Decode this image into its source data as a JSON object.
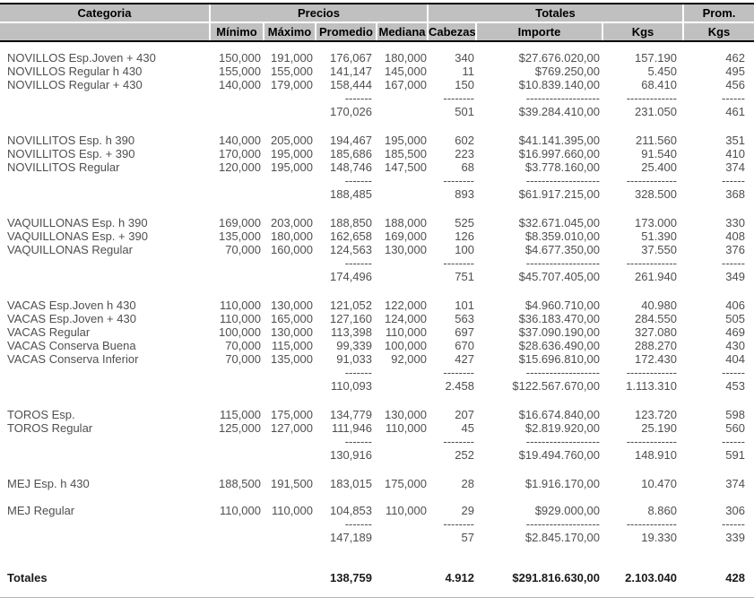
{
  "header": {
    "categoria": "Categoria",
    "precios": "Precios",
    "totales": "Totales",
    "prom": "Prom.",
    "sub": [
      "Mínimo",
      "Máximo",
      "Promedio",
      "Mediana",
      "Cabezas",
      "Importe",
      "Kgs",
      "Kgs"
    ]
  },
  "colors": {
    "header_bg": "#c0c0c0",
    "header_border": "#000000",
    "body_text": "#4f4f4f",
    "bottom_rule": "#b3b3b3"
  },
  "dashes": {
    "promedio": "-------",
    "cabezas": "--------",
    "importe": "-------------------",
    "kgs": "-------------",
    "prom_kgs": "------"
  },
  "groups": [
    {
      "rows": [
        {
          "categoria": "NOVILLOS Esp.Joven + 430",
          "minimo": "150,000",
          "maximo": "191,000",
          "promedio": "176,067",
          "mediana": "180,000",
          "cabezas": "340",
          "importe": "$27.676.020,00",
          "kgs": "157.190",
          "prom_kgs": "462"
        },
        {
          "categoria": "NOVILLOS Regular h 430",
          "minimo": "155,000",
          "maximo": "155,000",
          "promedio": "141,147",
          "mediana": "145,000",
          "cabezas": "11",
          "importe": "$769.250,00",
          "kgs": "5.450",
          "prom_kgs": "495"
        },
        {
          "categoria": "NOVILLOS Regular + 430",
          "minimo": "140,000",
          "maximo": "179,000",
          "promedio": "158,444",
          "mediana": "167,000",
          "cabezas": "150",
          "importe": "$10.839.140,00",
          "kgs": "68.410",
          "prom_kgs": "456"
        }
      ],
      "subtotal": {
        "promedio": "170,026",
        "cabezas": "501",
        "importe": "$39.284.410,00",
        "kgs": "231.050",
        "prom_kgs": "461"
      }
    },
    {
      "rows": [
        {
          "categoria": "NOVILLITOS Esp. h 390",
          "minimo": "140,000",
          "maximo": "205,000",
          "promedio": "194,467",
          "mediana": "195,000",
          "cabezas": "602",
          "importe": "$41.141.395,00",
          "kgs": "211.560",
          "prom_kgs": "351"
        },
        {
          "categoria": "NOVILLITOS Esp. + 390",
          "minimo": "170,000",
          "maximo": "195,000",
          "promedio": "185,686",
          "mediana": "185,500",
          "cabezas": "223",
          "importe": "$16.997.660,00",
          "kgs": "91.540",
          "prom_kgs": "410"
        },
        {
          "categoria": "NOVILLITOS Regular",
          "minimo": "120,000",
          "maximo": "195,000",
          "promedio": "148,746",
          "mediana": "147,500",
          "cabezas": "68",
          "importe": "$3.778.160,00",
          "kgs": "25.400",
          "prom_kgs": "374"
        }
      ],
      "subtotal": {
        "promedio": "188,485",
        "cabezas": "893",
        "importe": "$61.917.215,00",
        "kgs": "328.500",
        "prom_kgs": "368"
      }
    },
    {
      "rows": [
        {
          "categoria": "VAQUILLONAS Esp. h 390",
          "minimo": "169,000",
          "maximo": "203,000",
          "promedio": "188,850",
          "mediana": "188,000",
          "cabezas": "525",
          "importe": "$32.671.045,00",
          "kgs": "173.000",
          "prom_kgs": "330"
        },
        {
          "categoria": "VAQUILLONAS Esp. + 390",
          "minimo": "135,000",
          "maximo": "180,000",
          "promedio": "162,658",
          "mediana": "169,000",
          "cabezas": "126",
          "importe": "$8.359.010,00",
          "kgs": "51.390",
          "prom_kgs": "408"
        },
        {
          "categoria": "VAQUILLONAS Regular",
          "minimo": "70,000",
          "maximo": "160,000",
          "promedio": "124,563",
          "mediana": "130,000",
          "cabezas": "100",
          "importe": "$4.677.350,00",
          "kgs": "37.550",
          "prom_kgs": "376"
        }
      ],
      "subtotal": {
        "promedio": "174,496",
        "cabezas": "751",
        "importe": "$45.707.405,00",
        "kgs": "261.940",
        "prom_kgs": "349"
      }
    },
    {
      "rows": [
        {
          "categoria": "VACAS Esp.Joven h 430",
          "minimo": "110,000",
          "maximo": "130,000",
          "promedio": "121,052",
          "mediana": "122,000",
          "cabezas": "101",
          "importe": "$4.960.710,00",
          "kgs": "40.980",
          "prom_kgs": "406"
        },
        {
          "categoria": "VACAS Esp.Joven + 430",
          "minimo": "110,000",
          "maximo": "165,000",
          "promedio": "127,160",
          "mediana": "124,000",
          "cabezas": "563",
          "importe": "$36.183.470,00",
          "kgs": "284.550",
          "prom_kgs": "505"
        },
        {
          "categoria": "VACAS Regular",
          "minimo": "100,000",
          "maximo": "130,000",
          "promedio": "113,398",
          "mediana": "110,000",
          "cabezas": "697",
          "importe": "$37.090.190,00",
          "kgs": "327.080",
          "prom_kgs": "469"
        },
        {
          "categoria": "VACAS Conserva Buena",
          "minimo": "70,000",
          "maximo": "115,000",
          "promedio": "99,339",
          "mediana": "100,000",
          "cabezas": "670",
          "importe": "$28.636.490,00",
          "kgs": "288.270",
          "prom_kgs": "430"
        },
        {
          "categoria": "VACAS Conserva Inferior",
          "minimo": "70,000",
          "maximo": "135,000",
          "promedio": "91,033",
          "mediana": "92,000",
          "cabezas": "427",
          "importe": "$15.696.810,00",
          "kgs": "172.430",
          "prom_kgs": "404"
        }
      ],
      "subtotal": {
        "promedio": "110,093",
        "cabezas": "2.458",
        "importe": "$122.567.670,00",
        "kgs": "1.113.310",
        "prom_kgs": "453"
      }
    },
    {
      "rows": [
        {
          "categoria": "TOROS Esp.",
          "minimo": "115,000",
          "maximo": "175,000",
          "promedio": "134,779",
          "mediana": "130,000",
          "cabezas": "207",
          "importe": "$16.674.840,00",
          "kgs": "123.720",
          "prom_kgs": "598"
        },
        {
          "categoria": "TOROS Regular",
          "minimo": "125,000",
          "maximo": "127,000",
          "promedio": "111,946",
          "mediana": "110,000",
          "cabezas": "45",
          "importe": "$2.819.920,00",
          "kgs": "25.190",
          "prom_kgs": "560"
        }
      ],
      "subtotal": {
        "promedio": "130,916",
        "cabezas": "252",
        "importe": "$19.494.760,00",
        "kgs": "148.910",
        "prom_kgs": "591"
      }
    },
    {
      "rows": [
        {
          "categoria": "MEJ Esp. h 430",
          "minimo": "188,500",
          "maximo": "191,500",
          "promedio": "183,015",
          "mediana": "175,000",
          "cabezas": "28",
          "importe": "$1.916.170,00",
          "kgs": "10.470",
          "prom_kgs": "374"
        },
        {
          "categoria": "MEJ Regular",
          "gap_before": true,
          "minimo": "110,000",
          "maximo": "110,000",
          "promedio": "104,853",
          "mediana": "110,000",
          "cabezas": "29",
          "importe": "$929.000,00",
          "kgs": "8.860",
          "prom_kgs": "306"
        }
      ],
      "subtotal": {
        "promedio": "147,189",
        "cabezas": "57",
        "importe": "$2.845.170,00",
        "kgs": "19.330",
        "prom_kgs": "339"
      }
    }
  ],
  "totals": {
    "label": "Totales",
    "promedio": "138,759",
    "cabezas": "4.912",
    "importe": "$291.816.630,00",
    "kgs": "2.103.040",
    "prom_kgs": "428"
  }
}
